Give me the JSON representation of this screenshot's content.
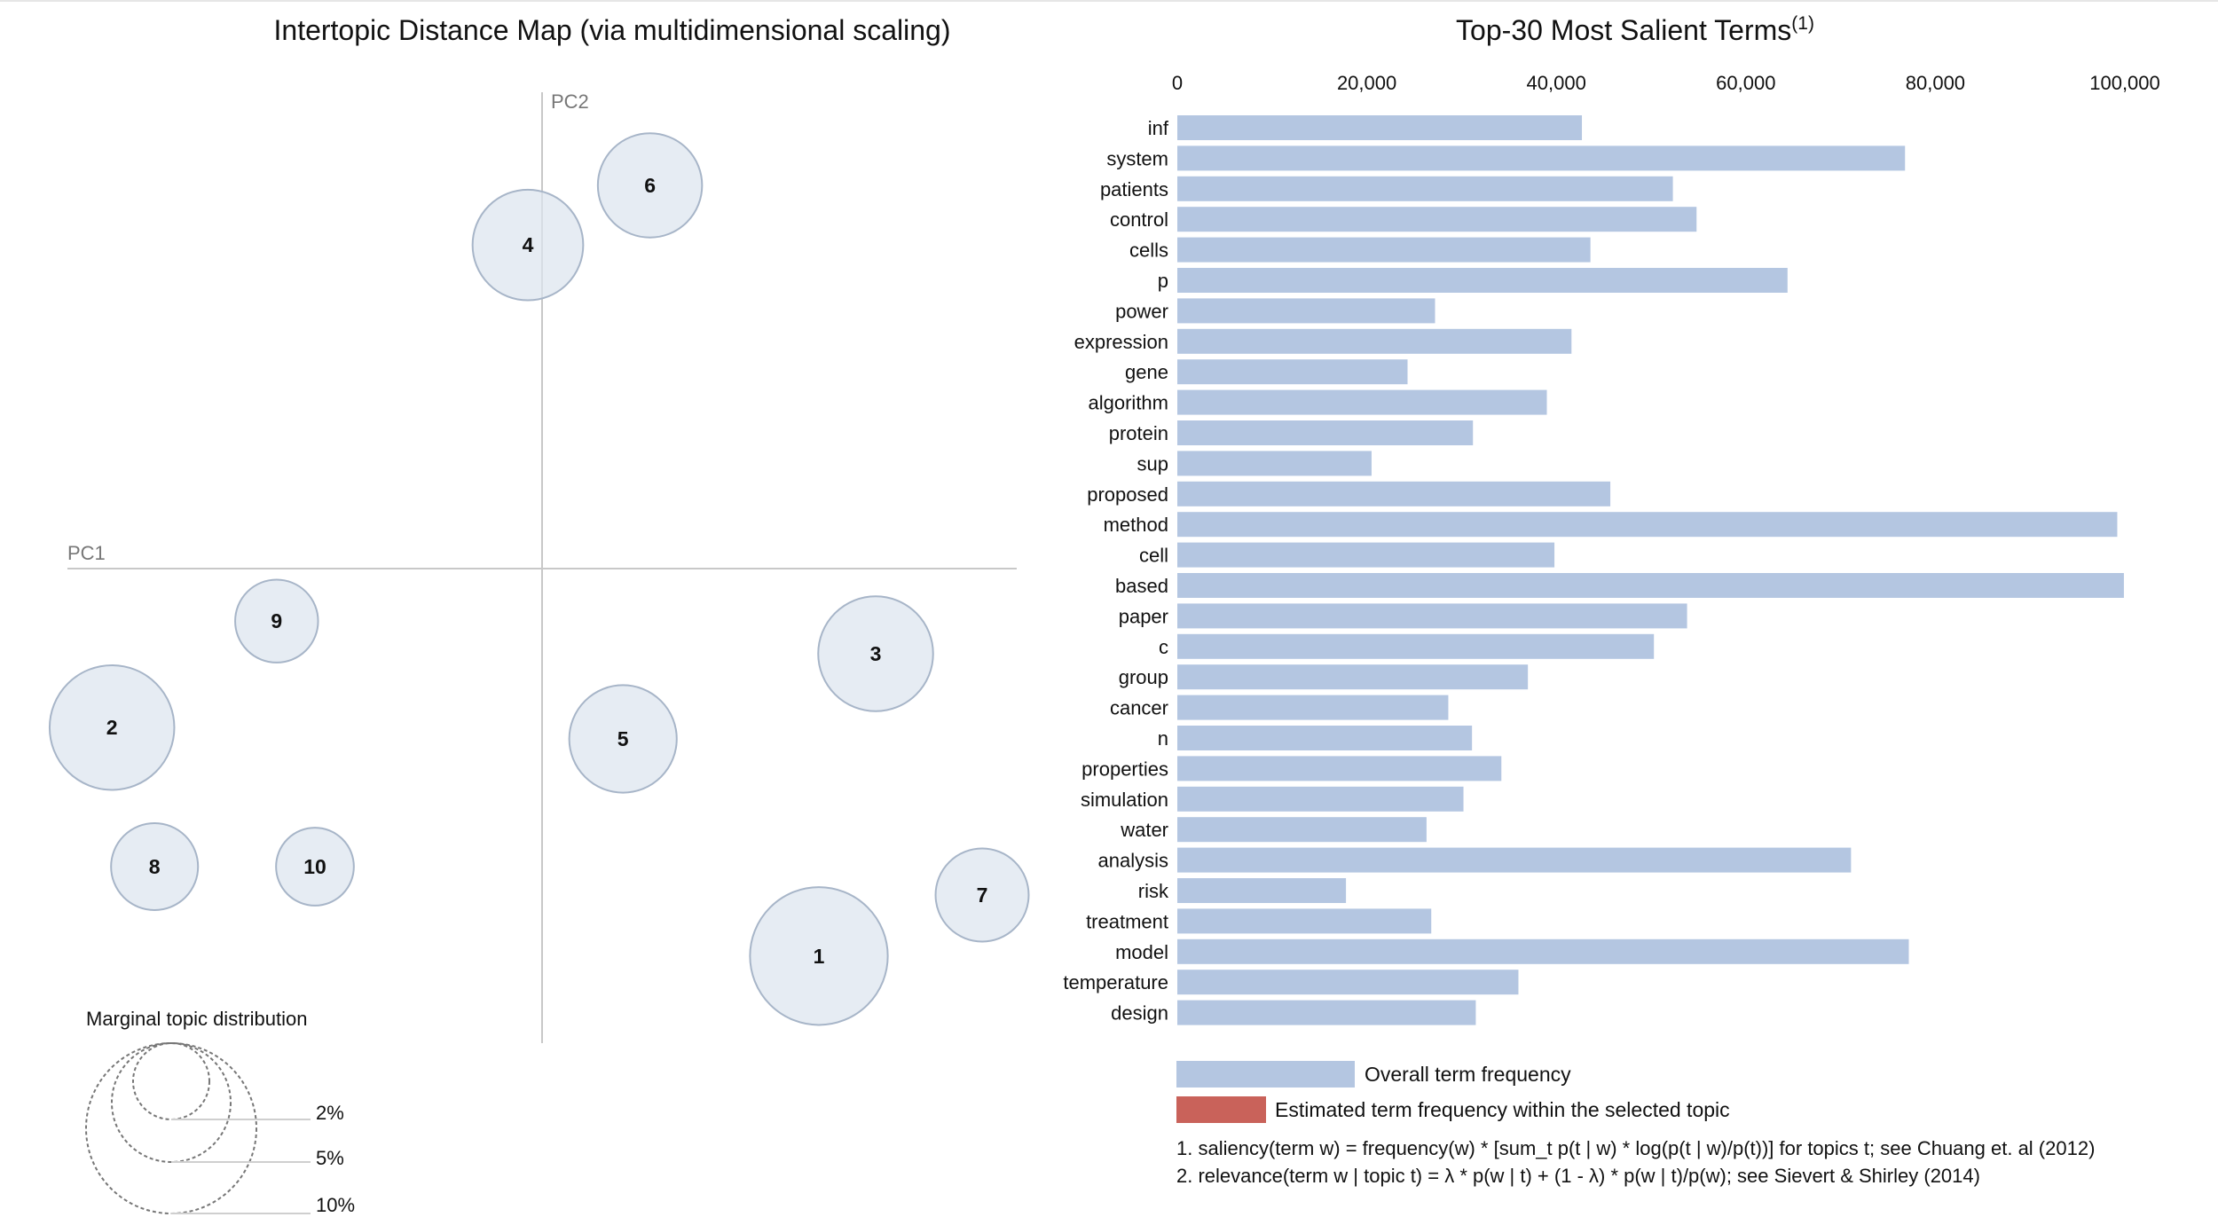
{
  "left_panel": {
    "title": "Intertopic Distance Map (via multidimensional scaling)",
    "pc1_label": "PC1",
    "pc2_label": "PC2",
    "marginal_title": "Marginal topic distribution",
    "marginal_levels": [
      "2%",
      "5%",
      "10%"
    ]
  },
  "right_panel": {
    "title": "Top-30 Most Salient Terms",
    "title_superscript": "(1)",
    "legend": {
      "overall": "Overall term frequency",
      "estimated": "Estimated term frequency within the selected topic"
    },
    "footnotes": [
      "1. saliency(term w) = frequency(w) * [sum_t p(t | w) * log(p(t | w)/p(t))] for topics t; see Chuang et. al (2012)",
      "2. relevance(term w | topic t) = λ * p(w | t) + (1 - λ) * p(w | t)/p(w); see Sievert & Shirley (2014)"
    ]
  },
  "colors": {
    "bar_overall": "#b4c6e1",
    "bar_topic": "#c9625a",
    "topic_fill": "#dde4ef",
    "topic_stroke": "#a7b5c8",
    "axis_line": "#c8c8c8"
  },
  "chart_data": [
    {
      "type": "scatter",
      "title": "Intertopic Distance Map (via multidimensional scaling)",
      "xlabel": "PC1",
      "ylabel": "PC2",
      "note": "bubble area shows marginal topic distribution; positions approximate",
      "topics": [
        {
          "label": "1",
          "pc1": 0.195,
          "pc2": -0.273,
          "marginal_pct": 13.8
        },
        {
          "label": "2",
          "pc1": -0.303,
          "pc2": -0.112,
          "marginal_pct": 11.3
        },
        {
          "label": "3",
          "pc1": 0.235,
          "pc2": -0.06,
          "marginal_pct": 9.6
        },
        {
          "label": "4",
          "pc1": -0.01,
          "pc2": 0.228,
          "marginal_pct": 8.9
        },
        {
          "label": "5",
          "pc1": 0.057,
          "pc2": -0.12,
          "marginal_pct": 8.4
        },
        {
          "label": "6",
          "pc1": 0.076,
          "pc2": 0.27,
          "marginal_pct": 7.9
        },
        {
          "label": "7",
          "pc1": 0.31,
          "pc2": -0.23,
          "marginal_pct": 6.3
        },
        {
          "label": "8",
          "pc1": -0.273,
          "pc2": -0.21,
          "marginal_pct": 5.5
        },
        {
          "label": "9",
          "pc1": -0.187,
          "pc2": -0.037,
          "marginal_pct": 5.0
        },
        {
          "label": "10",
          "pc1": -0.16,
          "pc2": -0.21,
          "marginal_pct": 4.4
        }
      ]
    },
    {
      "type": "bar",
      "orientation": "horizontal",
      "title": "Top-30 Most Salient Terms",
      "xlim": [
        0,
        100000
      ],
      "xticks": [
        0,
        20000,
        40000,
        60000,
        80000,
        100000
      ],
      "xtick_labels": [
        "0",
        "20,000",
        "40,000",
        "60,000",
        "80,000",
        "100,000"
      ],
      "categories": [
        "inf",
        "system",
        "patients",
        "control",
        "cells",
        "p",
        "power",
        "expression",
        "gene",
        "algorithm",
        "protein",
        "sup",
        "proposed",
        "method",
        "cell",
        "based",
        "paper",
        "c",
        "group",
        "cancer",
        "n",
        "properties",
        "simulation",
        "water",
        "analysis",
        "risk",
        "treatment",
        "model",
        "temperature",
        "design"
      ],
      "series": [
        {
          "name": "Overall term frequency",
          "values": [
            42700,
            76800,
            52300,
            54800,
            43600,
            64400,
            27200,
            41600,
            24300,
            39000,
            31200,
            20500,
            45700,
            99200,
            39800,
            99900,
            53800,
            50300,
            37000,
            28600,
            31100,
            34200,
            30200,
            26300,
            71100,
            17800,
            26800,
            77200,
            36000,
            31500
          ]
        }
      ]
    }
  ]
}
